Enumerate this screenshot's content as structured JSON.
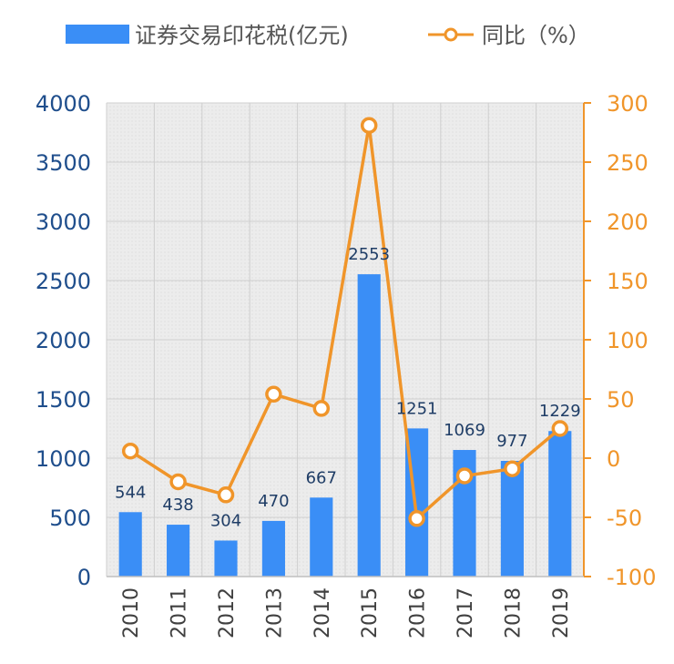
{
  "chart_data": {
    "type": "bar",
    "categories": [
      "2010",
      "2011",
      "2012",
      "2013",
      "2014",
      "2015",
      "2016",
      "2017",
      "2018",
      "2019"
    ],
    "series": [
      {
        "name": "证券交易印花税(亿元)",
        "type": "bar",
        "axis": "left",
        "values": [
          544,
          438,
          304,
          470,
          667,
          2553,
          1251,
          1069,
          977,
          1229
        ],
        "color": "#3a8ef6"
      },
      {
        "name": "同比（%）",
        "type": "line",
        "axis": "right",
        "values": [
          6,
          -20,
          -31,
          54,
          42,
          281,
          -51,
          -15,
          -9,
          25
        ],
        "color": "#f0952a"
      }
    ],
    "y_left": {
      "lim": [
        0,
        4000
      ],
      "ticks": [
        0,
        500,
        1000,
        1500,
        2000,
        2500,
        3000,
        3500,
        4000
      ],
      "color": "#1f4e8c"
    },
    "y_right": {
      "lim": [
        -100,
        300
      ],
      "ticks": [
        -100,
        -50,
        0,
        50,
        100,
        150,
        200,
        250,
        300
      ],
      "color": "#f0952a"
    },
    "grid": true,
    "legend": "top",
    "data_labels": true,
    "plot_background": "#ececec"
  }
}
